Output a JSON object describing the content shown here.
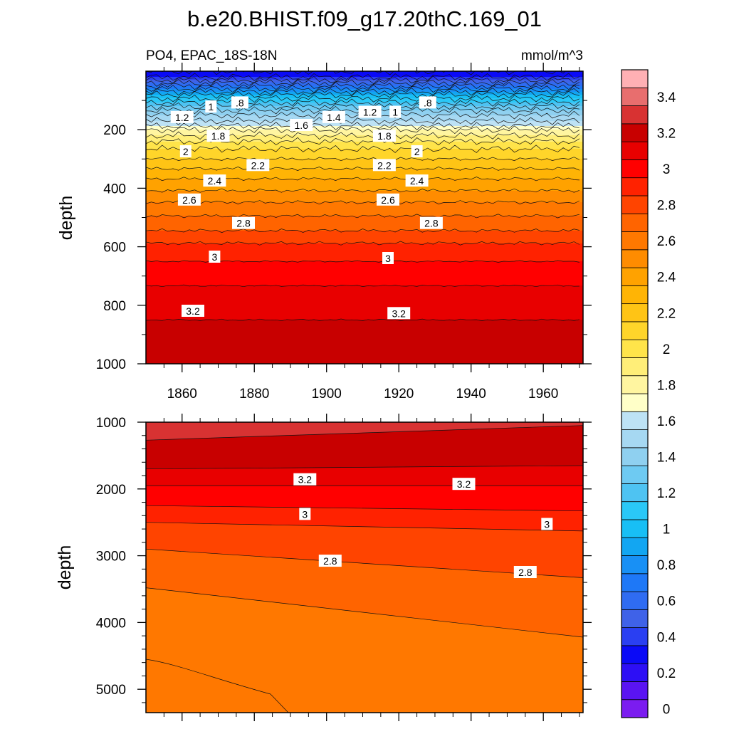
{
  "figure": {
    "title": "b.e20.BHIST.f09_g17.20thC.169_01",
    "left_subtitle": "PO4, EPAC_18S-18N",
    "right_subtitle": "mmol/m^3"
  },
  "colors": {
    "frame": "#000000",
    "contour_line": "#111111",
    "label_box": "#ffffff"
  },
  "colorbar": {
    "levels": [
      0,
      0.1,
      0.2,
      0.3,
      0.4,
      0.5,
      0.6,
      0.7,
      0.8,
      0.9,
      1.0,
      1.1,
      1.2,
      1.3,
      1.4,
      1.5,
      1.6,
      1.7,
      1.8,
      1.9,
      2.0,
      2.1,
      2.2,
      2.3,
      2.4,
      2.5,
      2.6,
      2.7,
      2.8,
      2.9,
      3.0,
      3.1,
      3.2,
      3.3,
      3.4,
      3.5
    ],
    "colors": [
      "#7b1cf0",
      "#5a14f2",
      "#2d0ff5",
      "#0a0af7",
      "#2a3ff2",
      "#3f62e8",
      "#2f6cf2",
      "#1e78f7",
      "#1890f5",
      "#12a6f2",
      "#18bff5",
      "#2ac8f7",
      "#4ec3f2",
      "#6ecaf2",
      "#8fd0f0",
      "#a6d8f2",
      "#bde2f5",
      "#ffffc8",
      "#fff5a0",
      "#ffee78",
      "#ffe44a",
      "#ffd52a",
      "#ffc415",
      "#ffb405",
      "#ffa200",
      "#ff8c00",
      "#ff7800",
      "#ff6400",
      "#ff4400",
      "#ff2200",
      "#ff0000",
      "#e80000",
      "#c80000",
      "#d83232",
      "#e86e6e",
      "#ffb0b4"
    ],
    "labels": [
      "0",
      "0.2",
      "0.4",
      "0.6",
      "0.8",
      "1",
      "1.2",
      "1.4",
      "1.6",
      "1.8",
      "2",
      "2.2",
      "2.4",
      "2.6",
      "2.8",
      "3",
      "3.2",
      "3.4"
    ]
  },
  "chart_data": [
    {
      "type": "contour",
      "name": "upper-ocean",
      "x_range": [
        1850,
        1971
      ],
      "y_range": [
        0,
        1000
      ],
      "y_inverted": true,
      "ylabel": "depth",
      "xticks": [
        "1860",
        "1880",
        "1900",
        "1920",
        "1940",
        "1960"
      ],
      "yticks": [
        "200",
        "400",
        "600",
        "800",
        "1000"
      ],
      "depth_profile": {
        "depth": [
          0,
          20,
          40,
          60,
          80,
          100,
          120,
          140,
          160,
          180,
          190,
          200,
          220,
          240,
          260,
          280,
          300,
          320,
          340,
          360,
          380,
          400,
          420,
          440,
          460,
          480,
          500,
          520,
          540,
          560,
          580,
          600,
          650,
          700,
          750,
          800,
          850,
          900,
          950,
          1000
        ],
        "po4": [
          0.3,
          0.4,
          0.6,
          0.8,
          1.0,
          1.15,
          1.3,
          1.45,
          1.55,
          1.65,
          1.72,
          1.8,
          1.9,
          2.0,
          2.08,
          2.15,
          2.2,
          2.26,
          2.32,
          2.38,
          2.43,
          2.48,
          2.53,
          2.58,
          2.63,
          2.67,
          2.71,
          2.75,
          2.79,
          2.83,
          2.88,
          2.93,
          3.0,
          3.06,
          3.12,
          3.17,
          3.2,
          3.22,
          3.24,
          3.27
        ]
      },
      "contour_labels": [
        {
          "text": ".8",
          "year": 1876,
          "depth": 108
        },
        {
          "text": "1",
          "year": 1868,
          "depth": 122
        },
        {
          "text": "1.2",
          "year": 1860,
          "depth": 158
        },
        {
          "text": ".8",
          "year": 1928,
          "depth": 108
        },
        {
          "text": "1",
          "year": 1919,
          "depth": 140
        },
        {
          "text": "1.2",
          "year": 1912,
          "depth": 140
        },
        {
          "text": "1.4",
          "year": 1902,
          "depth": 158
        },
        {
          "text": "1.6",
          "year": 1893,
          "depth": 185
        },
        {
          "text": "1.8",
          "year": 1870,
          "depth": 222
        },
        {
          "text": "1.8",
          "year": 1916,
          "depth": 222
        },
        {
          "text": "2",
          "year": 1861,
          "depth": 275
        },
        {
          "text": "2",
          "year": 1925,
          "depth": 275
        },
        {
          "text": "2.2",
          "year": 1881,
          "depth": 322
        },
        {
          "text": "2.2",
          "year": 1916,
          "depth": 322
        },
        {
          "text": "2.4",
          "year": 1869,
          "depth": 375
        },
        {
          "text": "2.4",
          "year": 1925,
          "depth": 375
        },
        {
          "text": "2.6",
          "year": 1862,
          "depth": 440
        },
        {
          "text": "2.6",
          "year": 1917,
          "depth": 440
        },
        {
          "text": "2.8",
          "year": 1877,
          "depth": 520
        },
        {
          "text": "2.8",
          "year": 1929,
          "depth": 520
        },
        {
          "text": "3",
          "year": 1869,
          "depth": 635
        },
        {
          "text": "3",
          "year": 1917,
          "depth": 640
        },
        {
          "text": "3.2",
          "year": 1863,
          "depth": 820
        },
        {
          "text": "3.2",
          "year": 1920,
          "depth": 828
        }
      ]
    },
    {
      "type": "contour",
      "name": "deep-ocean",
      "x_range": [
        1850,
        1971
      ],
      "y_range": [
        1000,
        5350
      ],
      "y_inverted": true,
      "ylabel": "depth",
      "yticks": [
        "1000",
        "2000",
        "3000",
        "4000",
        "5000"
      ],
      "levels": [
        2.4,
        2.5,
        2.6,
        2.7,
        2.8,
        2.9,
        3.0,
        3.1,
        3.2,
        3.3
      ],
      "contour_lines": [
        {
          "value": 3.3,
          "depth_start": 1270,
          "depth_end": 1050
        },
        {
          "value": 3.2,
          "depth_start": 1700,
          "depth_end": 1650
        },
        {
          "value": 3.1,
          "depth_start": 1950,
          "depth_end": 1950
        },
        {
          "value": 3.0,
          "depth_start": 2250,
          "depth_end": 2330
        },
        {
          "value": 2.9,
          "depth_start": 2500,
          "depth_end": 2630
        },
        {
          "value": 2.8,
          "depth_start": 2900,
          "depth_end": 3330
        },
        {
          "value": 2.7,
          "depth_start": 3480,
          "depth_end": 4220
        }
      ],
      "contour_labels": [
        {
          "text": "3.2",
          "year": 1894,
          "depth": 1860
        },
        {
          "text": "3.2",
          "year": 1938,
          "depth": 1930
        },
        {
          "text": "3",
          "year": 1894,
          "depth": 2380
        },
        {
          "text": "3",
          "year": 1961,
          "depth": 2530
        },
        {
          "text": "2.8",
          "year": 1901,
          "depth": 3080
        },
        {
          "text": "2.8",
          "year": 1955,
          "depth": 3250
        }
      ]
    }
  ]
}
